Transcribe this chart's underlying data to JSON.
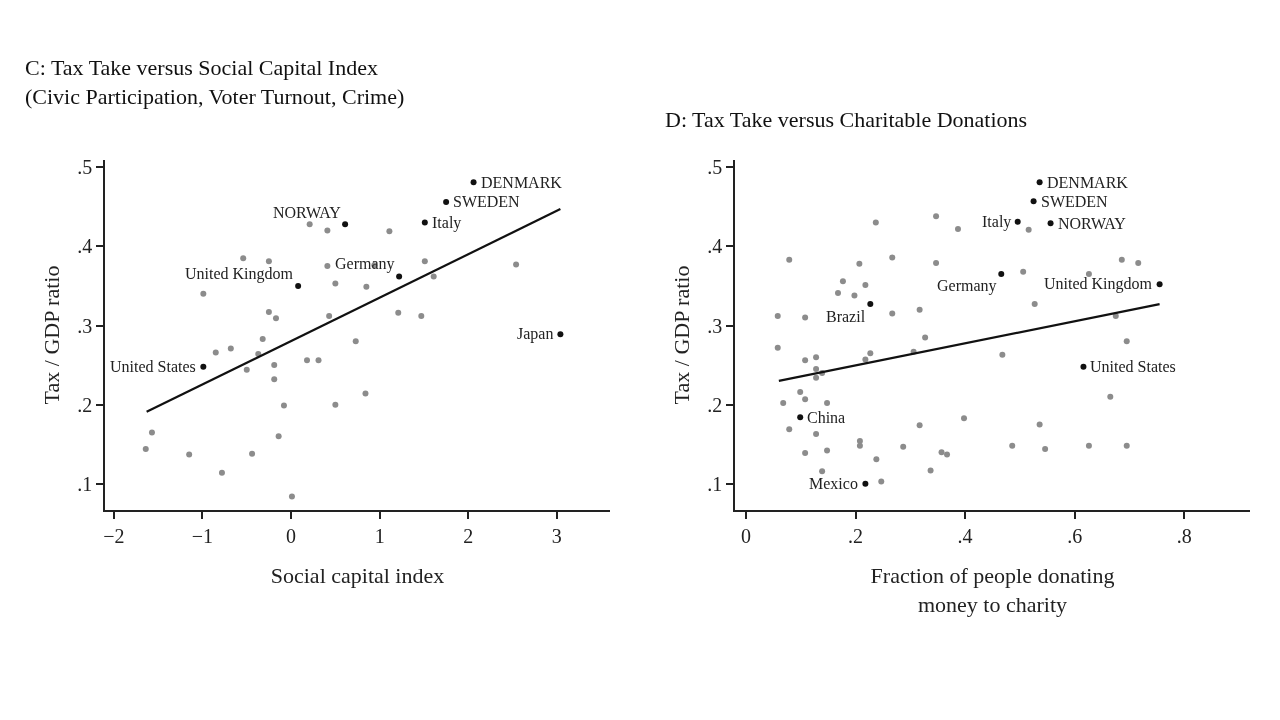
{
  "chart_data": [
    {
      "type": "scatter",
      "title": "C: Tax Take versus Social Capital Index\n(Civic Participation, Voter Turnout, Crime)",
      "xlabel": "Social capital index",
      "ylabel": "Tax / GDP ratio",
      "grid": false,
      "marker": "circle",
      "xlim": [
        -2.1,
        3.6
      ],
      "xticks": [
        {
          "value": -2,
          "label": "−2"
        },
        {
          "value": -1,
          "label": "−1"
        },
        0,
        1,
        2,
        3
      ],
      "ylim": [
        0.067,
        0.509
      ],
      "yticks": [
        {
          "value": 0.1,
          "label": ".1"
        },
        {
          "value": 0.2,
          "label": ".2"
        },
        {
          "value": 0.3,
          "label": ".3"
        },
        {
          "value": 0.4,
          "label": ".4"
        },
        {
          "value": 0.5,
          "label": ".5"
        }
      ],
      "series": [
        {
          "color": "#8c8c8c",
          "x": [
            0.21,
            0.41,
            1.11,
            -0.54,
            -0.25,
            0.41,
            0.94,
            1.51,
            2.54,
            1.61,
            0.5,
            0.85,
            -0.99,
            -0.25,
            -0.17,
            0.43,
            1.21,
            1.47,
            -0.32,
            -0.85,
            -0.68,
            -0.37,
            0.73,
            -0.19,
            -0.5,
            0.18,
            0.31,
            -0.19,
            0.84,
            -0.08,
            0.5,
            -1.57,
            -1.64,
            -0.14,
            -1.15,
            -0.44,
            -0.78,
            0.01
          ],
          "values": [
            0.428,
            0.42,
            0.419,
            0.385,
            0.381,
            0.375,
            0.376,
            0.381,
            0.377,
            0.362,
            0.353,
            0.349,
            0.34,
            0.317,
            0.309,
            0.312,
            0.316,
            0.312,
            0.283,
            0.266,
            0.271,
            0.264,
            0.28,
            0.25,
            0.244,
            0.256,
            0.256,
            0.232,
            0.214,
            0.199,
            0.2,
            0.165,
            0.144,
            0.16,
            0.137,
            0.138,
            0.114,
            0.084
          ]
        },
        {
          "color": "#111111",
          "x": [
            2.06,
            1.75,
            0.61,
            1.51,
            1.22,
            0.08,
            3.04,
            -0.99
          ],
          "values": [
            0.481,
            0.456,
            0.428,
            0.43,
            0.362,
            0.35,
            0.289,
            0.248
          ]
        },
        {
          "type": "line",
          "color": "#111111",
          "marker": "none",
          "line_style": "solid",
          "x": [
            -1.63,
            3.04
          ],
          "values": [
            0.191,
            0.447
          ]
        }
      ],
      "annotations": [
        {
          "text": "DENMARK",
          "x": 2.06,
          "y": 0.481
        },
        {
          "text": "SWEDEN",
          "x": 1.75,
          "y": 0.456
        },
        {
          "text": "NORWAY",
          "x": 0.61,
          "y": 0.428
        },
        {
          "text": "Italy",
          "x": 1.51,
          "y": 0.43
        },
        {
          "text": "Germany",
          "x": 1.22,
          "y": 0.362
        },
        {
          "text": "United Kingdom",
          "x": 0.08,
          "y": 0.35
        },
        {
          "text": "Japan",
          "x": 3.04,
          "y": 0.289
        },
        {
          "text": "United States",
          "x": -0.99,
          "y": 0.248
        }
      ]
    },
    {
      "type": "scatter",
      "title": "D: Tax Take versus Charitable Donations",
      "xlabel": "Fraction of people donating\nmoney to charity",
      "ylabel": "Tax / GDP ratio",
      "grid": false,
      "marker": "circle",
      "xlim": [
        -0.02,
        0.92
      ],
      "xticks": [
        0,
        {
          "value": 0.2,
          "label": ".2"
        },
        {
          "value": 0.4,
          "label": ".4"
        },
        {
          "value": 0.6,
          "label": ".6"
        },
        {
          "value": 0.8,
          "label": ".8"
        }
      ],
      "ylim": [
        0.067,
        0.509
      ],
      "yticks": [
        {
          "value": 0.1,
          "label": ".1"
        },
        {
          "value": 0.2,
          "label": ".2"
        },
        {
          "value": 0.3,
          "label": ".3"
        },
        {
          "value": 0.4,
          "label": ".4"
        },
        {
          "value": 0.5,
          "label": ".5"
        }
      ],
      "series": [
        {
          "color": "#8c8c8c",
          "x": [
            0.237,
            0.347,
            0.387,
            0.516,
            0.079,
            0.207,
            0.267,
            0.347,
            0.686,
            0.716,
            0.506,
            0.626,
            0.177,
            0.218,
            0.168,
            0.198,
            0.527,
            0.058,
            0.108,
            0.267,
            0.317,
            0.675,
            0.327,
            0.695,
            0.058,
            0.306,
            0.227,
            0.218,
            0.108,
            0.128,
            0.468,
            0.128,
            0.139,
            0.128,
            0.099,
            0.108,
            0.068,
            0.148,
            0.665,
            0.079,
            0.128,
            0.317,
            0.398,
            0.536,
            0.208,
            0.208,
            0.108,
            0.148,
            0.287,
            0.357,
            0.367,
            0.238,
            0.486,
            0.546,
            0.626,
            0.695,
            0.139,
            0.337,
            0.247
          ],
          "values": [
            0.43,
            0.438,
            0.422,
            0.421,
            0.383,
            0.378,
            0.386,
            0.379,
            0.383,
            0.379,
            0.368,
            0.365,
            0.356,
            0.351,
            0.341,
            0.338,
            0.327,
            0.312,
            0.31,
            0.315,
            0.32,
            0.312,
            0.285,
            0.28,
            0.272,
            0.267,
            0.265,
            0.257,
            0.256,
            0.26,
            0.263,
            0.245,
            0.24,
            0.234,
            0.216,
            0.207,
            0.202,
            0.202,
            0.21,
            0.169,
            0.163,
            0.174,
            0.183,
            0.175,
            0.154,
            0.148,
            0.139,
            0.142,
            0.147,
            0.14,
            0.137,
            0.131,
            0.148,
            0.144,
            0.148,
            0.148,
            0.116,
            0.117,
            0.103
          ]
        },
        {
          "color": "#111111",
          "x": [
            0.536,
            0.525,
            0.496,
            0.556,
            0.466,
            0.755,
            0.227,
            0.616,
            0.099,
            0.218
          ],
          "values": [
            0.481,
            0.457,
            0.431,
            0.429,
            0.365,
            0.352,
            0.327,
            0.248,
            0.184,
            0.1
          ]
        },
        {
          "type": "line",
          "color": "#111111",
          "marker": "none",
          "line_style": "solid",
          "x": [
            0.06,
            0.755
          ],
          "values": [
            0.23,
            0.327
          ]
        }
      ],
      "annotations": [
        {
          "text": "DENMARK",
          "x": 0.536,
          "y": 0.481
        },
        {
          "text": "SWEDEN",
          "x": 0.525,
          "y": 0.457
        },
        {
          "text": "Italy",
          "x": 0.496,
          "y": 0.431
        },
        {
          "text": "NORWAY",
          "x": 0.556,
          "y": 0.429
        },
        {
          "text": "Germany",
          "x": 0.466,
          "y": 0.365
        },
        {
          "text": "United Kingdom",
          "x": 0.755,
          "y": 0.352
        },
        {
          "text": "Brazil",
          "x": 0.227,
          "y": 0.327
        },
        {
          "text": "United States",
          "x": 0.616,
          "y": 0.248
        },
        {
          "text": "China",
          "x": 0.099,
          "y": 0.184
        },
        {
          "text": "Mexico",
          "x": 0.218,
          "y": 0.1
        }
      ]
    }
  ]
}
